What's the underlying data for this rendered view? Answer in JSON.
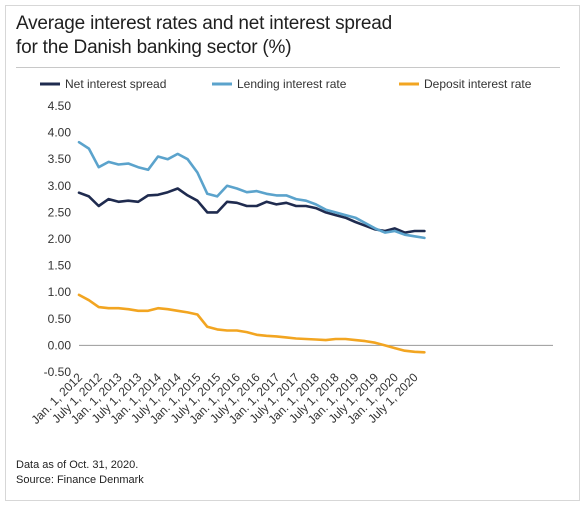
{
  "title_line1": "Average interest rates and net interest spread",
  "title_line2": "for the Danish banking sector (%)",
  "footer_line1": "Data as of Oct. 31, 2020.",
  "footer_line2": "Source: Finance Denmark",
  "chart_data": {
    "type": "line",
    "title": "Average interest rates and net interest spread for the Danish banking sector (%)",
    "xlabel": "",
    "ylabel": "",
    "ylim": [
      -0.5,
      4.5
    ],
    "yticks": [
      "4.50",
      "4.00",
      "3.50",
      "3.00",
      "2.50",
      "2.00",
      "1.50",
      "1.00",
      "0.50",
      "0.00",
      "-0.50"
    ],
    "xticks": [
      "Jan. 1, 2012",
      "July 1, 2012",
      "Jan. 1, 2013",
      "July 1, 2013",
      "Jan. 1, 2014",
      "July 1, 2014",
      "Jan. 1, 2015",
      "July 1, 2015",
      "Jan. 1, 2016",
      "July 1, 2016",
      "Jan. 1, 2017",
      "July 1, 2017",
      "Jan. 1, 2018",
      "July 1, 2018",
      "Jan. 1, 2019",
      "July 1, 2019",
      "Jan. 1, 2020",
      "July 1, 2020"
    ],
    "x": [
      "2012-01",
      "2012-04",
      "2012-07",
      "2012-10",
      "2013-01",
      "2013-04",
      "2013-07",
      "2013-10",
      "2014-01",
      "2014-04",
      "2014-07",
      "2014-10",
      "2015-01",
      "2015-04",
      "2015-07",
      "2015-10",
      "2016-01",
      "2016-04",
      "2016-07",
      "2016-10",
      "2017-01",
      "2017-04",
      "2017-07",
      "2017-10",
      "2018-01",
      "2018-04",
      "2018-07",
      "2018-10",
      "2019-01",
      "2019-04",
      "2019-07",
      "2019-10",
      "2020-01",
      "2020-04",
      "2020-07",
      "2020-10"
    ],
    "legend_position": "top",
    "grid": false,
    "series": [
      {
        "name": "Net interest spread",
        "color": "#1f2b4f",
        "values": [
          2.87,
          2.8,
          2.62,
          2.75,
          2.7,
          2.72,
          2.7,
          2.82,
          2.83,
          2.88,
          2.95,
          2.82,
          2.72,
          2.5,
          2.5,
          2.7,
          2.68,
          2.62,
          2.62,
          2.7,
          2.65,
          2.68,
          2.62,
          2.62,
          2.58,
          2.5,
          2.45,
          2.4,
          2.32,
          2.25,
          2.18,
          2.15,
          2.2,
          2.12,
          2.15,
          2.15
        ]
      },
      {
        "name": "Lending interest rate",
        "color": "#5ba3cc",
        "values": [
          3.82,
          3.7,
          3.35,
          3.45,
          3.4,
          3.42,
          3.35,
          3.3,
          3.55,
          3.5,
          3.6,
          3.5,
          3.25,
          2.85,
          2.8,
          3.0,
          2.95,
          2.88,
          2.9,
          2.85,
          2.82,
          2.82,
          2.75,
          2.72,
          2.65,
          2.55,
          2.5,
          2.45,
          2.4,
          2.3,
          2.2,
          2.12,
          2.15,
          2.08,
          2.05,
          2.02
        ]
      },
      {
        "name": "Deposit interest rate",
        "color": "#f2a521",
        "values": [
          0.95,
          0.85,
          0.72,
          0.7,
          0.7,
          0.68,
          0.65,
          0.65,
          0.7,
          0.68,
          0.65,
          0.62,
          0.58,
          0.35,
          0.3,
          0.28,
          0.28,
          0.25,
          0.2,
          0.18,
          0.17,
          0.15,
          0.13,
          0.12,
          0.11,
          0.1,
          0.12,
          0.12,
          0.1,
          0.08,
          0.05,
          0.0,
          -0.05,
          -0.1,
          -0.12,
          -0.13
        ]
      }
    ]
  }
}
